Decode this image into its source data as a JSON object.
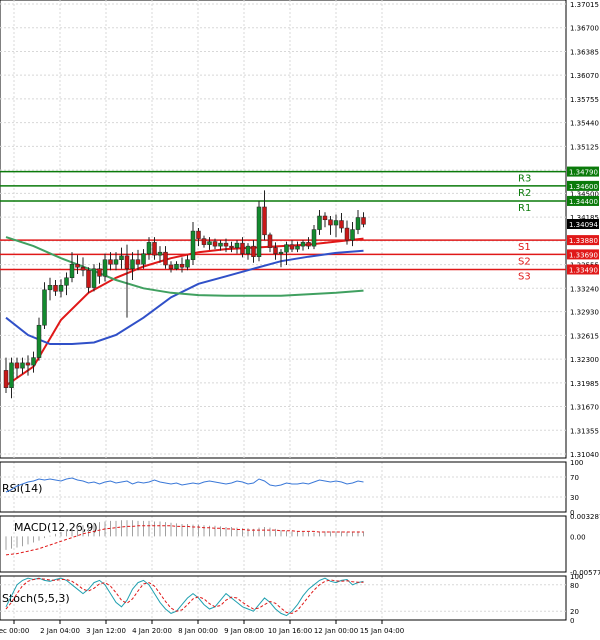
{
  "chart_data": {
    "type": "candlestick",
    "main": {
      "ylim": [
        1.3104,
        1.37015
      ],
      "y_ticks": [
        "1.37015",
        "1.36700",
        "1.36385",
        "1.36070",
        "1.35755",
        "1.35440",
        "1.35125",
        "1.34810",
        "1.34500",
        "1.34185",
        "1.33870",
        "1.33555",
        "1.33240",
        "1.32930",
        "1.32615",
        "1.32300",
        "1.31985",
        "1.31670",
        "1.31355",
        "1.31040"
      ],
      "grid": true,
      "current_price": "1.34094",
      "candles": [
        {
          "o": 1.3215,
          "h": 1.3232,
          "l": 1.3185,
          "c": 1.3192
        },
        {
          "o": 1.3192,
          "h": 1.3232,
          "l": 1.3178,
          "c": 1.3225
        },
        {
          "o": 1.3225,
          "h": 1.3232,
          "l": 1.3205,
          "c": 1.3218
        },
        {
          "o": 1.3218,
          "h": 1.3232,
          "l": 1.321,
          "c": 1.3225
        },
        {
          "o": 1.3225,
          "h": 1.3235,
          "l": 1.3208,
          "c": 1.3222
        },
        {
          "o": 1.3222,
          "h": 1.324,
          "l": 1.3212,
          "c": 1.3232
        },
        {
          "o": 1.3232,
          "h": 1.3285,
          "l": 1.3228,
          "c": 1.3275
        },
        {
          "o": 1.3275,
          "h": 1.3332,
          "l": 1.327,
          "c": 1.3322
        },
        {
          "o": 1.3322,
          "h": 1.3338,
          "l": 1.3308,
          "c": 1.3328
        },
        {
          "o": 1.3328,
          "h": 1.3335,
          "l": 1.3314,
          "c": 1.332
        },
        {
          "o": 1.332,
          "h": 1.3336,
          "l": 1.3312,
          "c": 1.3328
        },
        {
          "o": 1.3328,
          "h": 1.3345,
          "l": 1.3315,
          "c": 1.3338
        },
        {
          "o": 1.3338,
          "h": 1.3372,
          "l": 1.3332,
          "c": 1.3356
        },
        {
          "o": 1.3356,
          "h": 1.3368,
          "l": 1.3343,
          "c": 1.3352
        },
        {
          "o": 1.3352,
          "h": 1.3365,
          "l": 1.334,
          "c": 1.3348
        },
        {
          "o": 1.3348,
          "h": 1.3352,
          "l": 1.3318,
          "c": 1.3325
        },
        {
          "o": 1.3325,
          "h": 1.3356,
          "l": 1.332,
          "c": 1.335
        },
        {
          "o": 1.335,
          "h": 1.3358,
          "l": 1.333,
          "c": 1.334
        },
        {
          "o": 1.334,
          "h": 1.337,
          "l": 1.3333,
          "c": 1.3362
        },
        {
          "o": 1.3362,
          "h": 1.3372,
          "l": 1.3348,
          "c": 1.3356
        },
        {
          "o": 1.3356,
          "h": 1.3372,
          "l": 1.3348,
          "c": 1.3362
        },
        {
          "o": 1.3362,
          "h": 1.3378,
          "l": 1.335,
          "c": 1.3367
        },
        {
          "o": 1.3367,
          "h": 1.3382,
          "l": 1.3285,
          "c": 1.335
        },
        {
          "o": 1.335,
          "h": 1.3372,
          "l": 1.3335,
          "c": 1.3362
        },
        {
          "o": 1.3362,
          "h": 1.3375,
          "l": 1.3348,
          "c": 1.3356
        },
        {
          "o": 1.3356,
          "h": 1.3376,
          "l": 1.335,
          "c": 1.337
        },
        {
          "o": 1.337,
          "h": 1.3392,
          "l": 1.3362,
          "c": 1.3385
        },
        {
          "o": 1.3385,
          "h": 1.3392,
          "l": 1.3362,
          "c": 1.3368
        },
        {
          "o": 1.3368,
          "h": 1.338,
          "l": 1.3358,
          "c": 1.3372
        },
        {
          "o": 1.3372,
          "h": 1.338,
          "l": 1.335,
          "c": 1.3355
        },
        {
          "o": 1.3355,
          "h": 1.336,
          "l": 1.3345,
          "c": 1.335
        },
        {
          "o": 1.335,
          "h": 1.336,
          "l": 1.3348,
          "c": 1.3356
        },
        {
          "o": 1.3356,
          "h": 1.3365,
          "l": 1.3345,
          "c": 1.3352
        },
        {
          "o": 1.3352,
          "h": 1.3368,
          "l": 1.3348,
          "c": 1.3362
        },
        {
          "o": 1.3362,
          "h": 1.3412,
          "l": 1.3355,
          "c": 1.34
        },
        {
          "o": 1.34,
          "h": 1.3404,
          "l": 1.338,
          "c": 1.339
        },
        {
          "o": 1.339,
          "h": 1.3394,
          "l": 1.3378,
          "c": 1.3382
        },
        {
          "o": 1.3382,
          "h": 1.3392,
          "l": 1.3375,
          "c": 1.3386
        },
        {
          "o": 1.3386,
          "h": 1.339,
          "l": 1.3376,
          "c": 1.338
        },
        {
          "o": 1.338,
          "h": 1.3388,
          "l": 1.3374,
          "c": 1.3384
        },
        {
          "o": 1.3384,
          "h": 1.339,
          "l": 1.3372,
          "c": 1.338
        },
        {
          "o": 1.338,
          "h": 1.3386,
          "l": 1.3372,
          "c": 1.3378
        },
        {
          "o": 1.3378,
          "h": 1.3388,
          "l": 1.337,
          "c": 1.3384
        },
        {
          "o": 1.3384,
          "h": 1.3392,
          "l": 1.3365,
          "c": 1.337
        },
        {
          "o": 1.337,
          "h": 1.3384,
          "l": 1.3362,
          "c": 1.338
        },
        {
          "o": 1.338,
          "h": 1.3388,
          "l": 1.3358,
          "c": 1.3366
        },
        {
          "o": 1.3366,
          "h": 1.344,
          "l": 1.336,
          "c": 1.3432
        },
        {
          "o": 1.3432,
          "h": 1.3454,
          "l": 1.3388,
          "c": 1.3395
        },
        {
          "o": 1.3395,
          "h": 1.3398,
          "l": 1.3372,
          "c": 1.3378
        },
        {
          "o": 1.3378,
          "h": 1.3385,
          "l": 1.3362,
          "c": 1.337
        },
        {
          "o": 1.337,
          "h": 1.3376,
          "l": 1.3352,
          "c": 1.3372
        },
        {
          "o": 1.3372,
          "h": 1.3386,
          "l": 1.3355,
          "c": 1.3382
        },
        {
          "o": 1.3382,
          "h": 1.3388,
          "l": 1.3372,
          "c": 1.3376
        },
        {
          "o": 1.3376,
          "h": 1.3386,
          "l": 1.3372,
          "c": 1.338
        },
        {
          "o": 1.338,
          "h": 1.3388,
          "l": 1.3374,
          "c": 1.3385
        },
        {
          "o": 1.3385,
          "h": 1.3392,
          "l": 1.3376,
          "c": 1.338
        },
        {
          "o": 1.338,
          "h": 1.3408,
          "l": 1.3376,
          "c": 1.3402
        },
        {
          "o": 1.3402,
          "h": 1.3428,
          "l": 1.3395,
          "c": 1.342
        },
        {
          "o": 1.342,
          "h": 1.3425,
          "l": 1.3405,
          "c": 1.3415
        },
        {
          "o": 1.3415,
          "h": 1.342,
          "l": 1.3395,
          "c": 1.3408
        },
        {
          "o": 1.3408,
          "h": 1.3422,
          "l": 1.3392,
          "c": 1.3414
        },
        {
          "o": 1.3414,
          "h": 1.3424,
          "l": 1.3398,
          "c": 1.3404
        },
        {
          "o": 1.3404,
          "h": 1.3414,
          "l": 1.3382,
          "c": 1.3388
        },
        {
          "o": 1.3388,
          "h": 1.3412,
          "l": 1.338,
          "c": 1.3402
        },
        {
          "o": 1.3402,
          "h": 1.3428,
          "l": 1.3396,
          "c": 1.3418
        },
        {
          "o": 1.3418,
          "h": 1.3425,
          "l": 1.3405,
          "c": 1.3409
        }
      ],
      "levels": [
        {
          "name": "R3",
          "value": 1.3479,
          "label": "1.34790",
          "color": "#0a7a0a"
        },
        {
          "name": "R2",
          "value": 1.346,
          "label": "1.34600",
          "color": "#0a7a0a"
        },
        {
          "name": "R1",
          "value": 1.344,
          "label": "1.34400",
          "color": "#0a7a0a"
        },
        {
          "name": "S1",
          "value": 1.3388,
          "label": "1.33880",
          "color": "#e01818"
        },
        {
          "name": "S2",
          "value": 1.3369,
          "label": "1.33690",
          "color": "#e01818"
        },
        {
          "name": "S3",
          "value": 1.3349,
          "label": "1.33490",
          "color": "#e01818"
        }
      ],
      "ma_lines": [
        {
          "color": "#e01818",
          "points": [
            [
              0,
              1.3195
            ],
            [
              5,
              1.322
            ],
            [
              10,
              1.3282
            ],
            [
              15,
              1.3318
            ],
            [
              20,
              1.3338
            ],
            [
              25,
              1.3353
            ],
            [
              30,
              1.3364
            ],
            [
              35,
              1.3372
            ],
            [
              40,
              1.3376
            ],
            [
              45,
              1.3378
            ],
            [
              50,
              1.338
            ],
            [
              55,
              1.3382
            ],
            [
              60,
              1.3386
            ],
            [
              65,
              1.339
            ]
          ]
        },
        {
          "color": "#3050c8",
          "points": [
            [
              0,
              1.3285
            ],
            [
              4,
              1.3262
            ],
            [
              8,
              1.325
            ],
            [
              12,
              1.325
            ],
            [
              16,
              1.3252
            ],
            [
              20,
              1.3262
            ],
            [
              25,
              1.3285
            ],
            [
              30,
              1.3312
            ],
            [
              35,
              1.333
            ],
            [
              40,
              1.334
            ],
            [
              45,
              1.335
            ],
            [
              50,
              1.336
            ],
            [
              55,
              1.3366
            ],
            [
              60,
              1.3371
            ],
            [
              65,
              1.3374
            ]
          ]
        },
        {
          "color": "#40a060",
          "points": [
            [
              0,
              1.3392
            ],
            [
              5,
              1.338
            ],
            [
              10,
              1.3364
            ],
            [
              15,
              1.335
            ],
            [
              20,
              1.3335
            ],
            [
              25,
              1.3324
            ],
            [
              30,
              1.3318
            ],
            [
              35,
              1.3315
            ],
            [
              40,
              1.3314
            ],
            [
              45,
              1.3314
            ],
            [
              50,
              1.3314
            ],
            [
              55,
              1.3316
            ],
            [
              60,
              1.3318
            ],
            [
              65,
              1.3321
            ]
          ]
        }
      ]
    },
    "x_labels": [
      "ec 00:00",
      "2 Jan 04:00",
      "3 Jan 12:00",
      "4 Jan 20:00",
      "8 Jan 00:00",
      "9 Jan 08:00",
      "10 Jan 16:00",
      "12 Jan 00:00",
      "15 Jan 04:00"
    ],
    "rsi": {
      "name": "RSI(14)",
      "ticks": [
        "100",
        "70",
        "30",
        "0"
      ],
      "range": [
        0,
        100
      ],
      "values": [
        40,
        45,
        52,
        56,
        60,
        62,
        66,
        64,
        66,
        64,
        62,
        66,
        68,
        64,
        62,
        58,
        60,
        56,
        60,
        62,
        58,
        60,
        62,
        56,
        60,
        58,
        60,
        64,
        60,
        58,
        56,
        58,
        54,
        56,
        58,
        56,
        60,
        62,
        60,
        58,
        56,
        58,
        62,
        60,
        56,
        58,
        66,
        62,
        54,
        52,
        54,
        58,
        56,
        56,
        58,
        56,
        60,
        64,
        62,
        60,
        62,
        60,
        56,
        58,
        62,
        60
      ]
    },
    "macd": {
      "name": "MACD(12,26,9)",
      "ticks": [
        "0.003287",
        "0.00",
        "-0.005772"
      ],
      "range": [
        -0.005772,
        0.003287
      ],
      "histogram": [
        -0.0022,
        -0.002,
        -0.0018,
        -0.0016,
        -0.0013,
        -0.001,
        -0.0007,
        -0.0003,
        0.0001,
        0.0004,
        0.0007,
        0.001,
        0.0013,
        0.0016,
        0.0018,
        0.002,
        0.0022,
        0.0023,
        0.0024,
        0.0025,
        0.0025,
        0.0026,
        0.0026,
        0.0026,
        0.0025,
        0.0025,
        0.0025,
        0.0024,
        0.0024,
        0.0023,
        0.0022,
        0.0021,
        0.002,
        0.002,
        0.0019,
        0.0019,
        0.0018,
        0.0017,
        0.0017,
        0.0016,
        0.0015,
        0.0015,
        0.0014,
        0.0013,
        0.0013,
        0.0012,
        0.0014,
        0.0015,
        0.0014,
        0.0012,
        0.001,
        0.0009,
        0.0008,
        0.0008,
        0.0007,
        0.0007,
        0.0006,
        0.0007,
        0.0008,
        0.0008,
        0.0008,
        0.0008,
        0.0007,
        0.0007,
        0.0008,
        0.0008
      ],
      "signal": [
        -0.003,
        -0.0029,
        -0.0028,
        -0.0026,
        -0.0024,
        -0.0022,
        -0.002,
        -0.0017,
        -0.0014,
        -0.0011,
        -0.0008,
        -0.0005,
        -0.0002,
        0.0001,
        0.0004,
        0.0006,
        0.0008,
        0.001,
        0.0012,
        0.0013,
        0.0014,
        0.0015,
        0.0016,
        0.0016,
        0.0017,
        0.0017,
        0.0017,
        0.0017,
        0.0017,
        0.0017,
        0.0017,
        0.0016,
        0.0016,
        0.0016,
        0.0015,
        0.0015,
        0.0014,
        0.0014,
        0.0013,
        0.0013,
        0.0012,
        0.0012,
        0.0011,
        0.0011,
        0.001,
        0.001,
        0.001,
        0.001,
        0.001,
        0.001,
        0.0009,
        0.0009,
        0.0009,
        0.0008,
        0.0008,
        0.0008,
        0.0008,
        0.0007,
        0.0007,
        0.0007,
        0.0007,
        0.0007,
        0.0007,
        0.0007,
        0.0007,
        0.0007
      ]
    },
    "stoch": {
      "name": "Stoch(5,5,3)",
      "ticks": [
        "100",
        "80",
        "20",
        "0"
      ],
      "range": [
        0,
        100
      ],
      "k": [
        30,
        55,
        80,
        90,
        95,
        92,
        95,
        90,
        88,
        92,
        95,
        90,
        80,
        70,
        60,
        70,
        85,
        90,
        80,
        60,
        40,
        30,
        45,
        70,
        85,
        90,
        80,
        60,
        40,
        25,
        15,
        20,
        35,
        50,
        60,
        50,
        35,
        25,
        30,
        45,
        60,
        50,
        40,
        30,
        25,
        20,
        35,
        50,
        40,
        25,
        15,
        10,
        20,
        35,
        55,
        70,
        80,
        90,
        95,
        88,
        85,
        90,
        92,
        80,
        85,
        88
      ],
      "d": [
        25,
        40,
        60,
        78,
        88,
        92,
        94,
        93,
        91,
        90,
        92,
        92,
        88,
        80,
        70,
        66,
        72,
        82,
        85,
        77,
        62,
        45,
        38,
        48,
        66,
        82,
        85,
        77,
        60,
        42,
        27,
        20,
        23,
        35,
        48,
        53,
        48,
        37,
        30,
        33,
        45,
        52,
        50,
        40,
        32,
        25,
        27,
        35,
        42,
        38,
        27,
        17,
        15,
        22,
        37,
        53,
        68,
        80,
        88,
        91,
        89,
        88,
        89,
        87,
        86,
        86
      ]
    }
  }
}
